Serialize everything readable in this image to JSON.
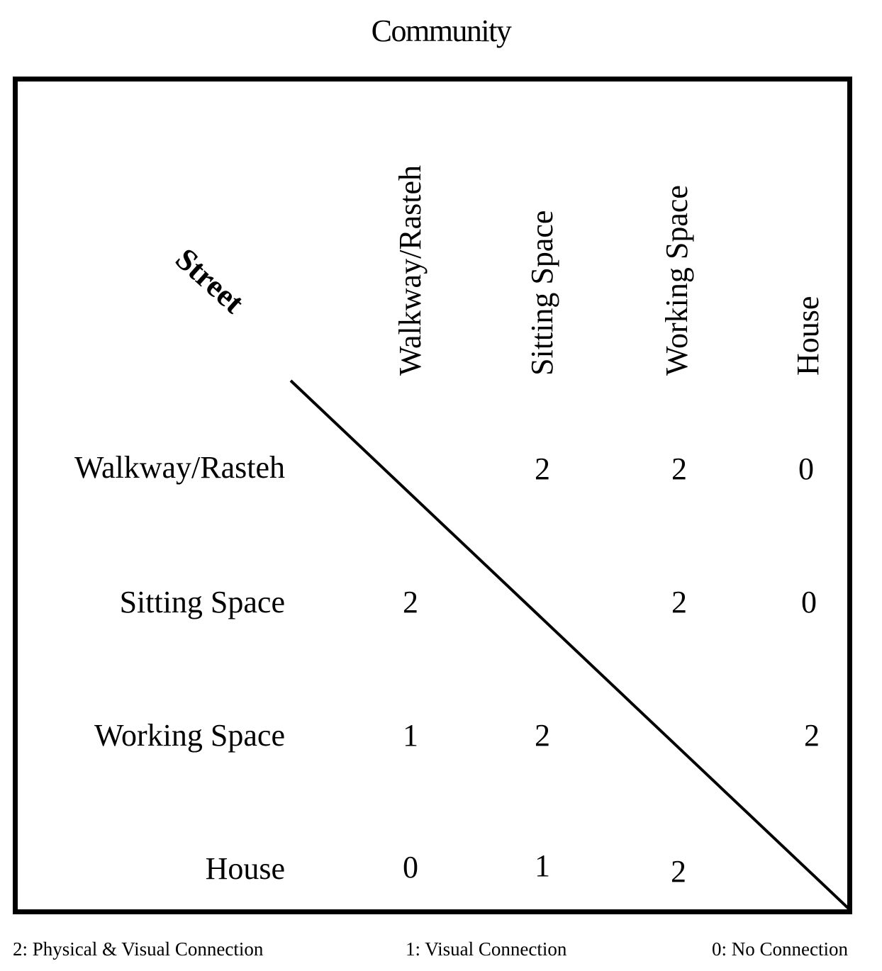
{
  "title": "Community",
  "corner_label": "Street",
  "columns": [
    "Walkway/Rasteh",
    "Sitting Space",
    "Working Space",
    "House"
  ],
  "rows": [
    {
      "label": "Walkway/Rasteh",
      "cells": [
        "",
        "2",
        "2",
        "0"
      ]
    },
    {
      "label": "Sitting Space",
      "cells": [
        "2",
        "",
        "2",
        "0"
      ]
    },
    {
      "label": "Working Space",
      "cells": [
        "1",
        "2",
        "",
        "2"
      ]
    },
    {
      "label": "House",
      "cells": [
        "0",
        "1",
        "2",
        ""
      ]
    }
  ],
  "legend": [
    "2: Physical & Visual Connection",
    "1: Visual Connection",
    "0: No Connection"
  ]
}
